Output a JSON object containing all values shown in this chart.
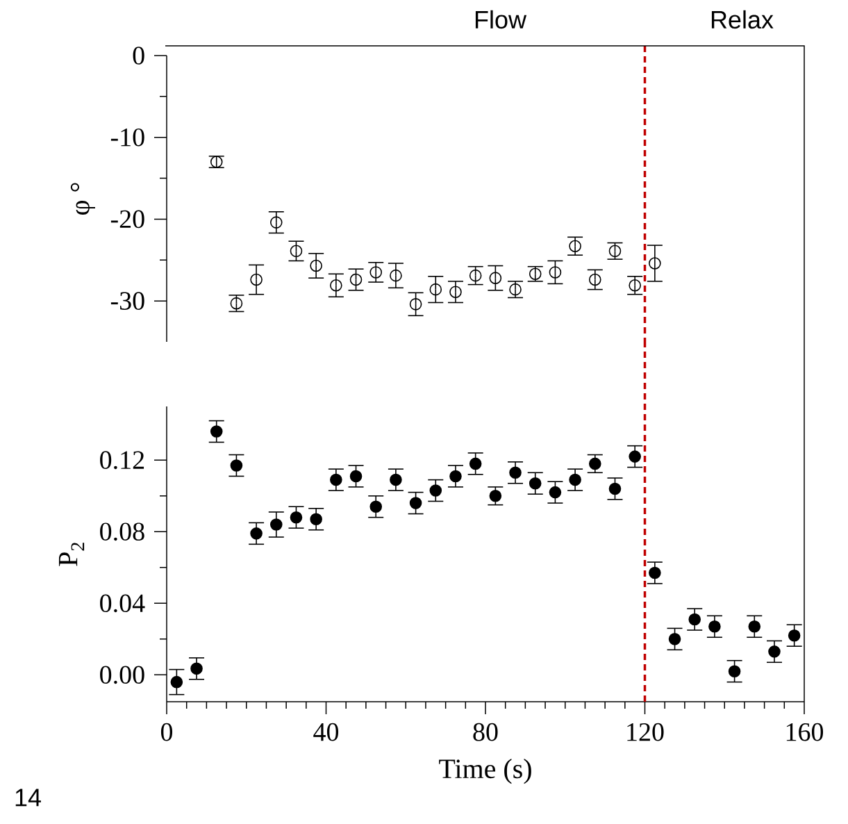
{
  "chart_data": [
    {
      "type": "scatter",
      "ylabel": "φ °",
      "xlim": [
        0,
        160
      ],
      "ylim": [
        -35,
        0
      ],
      "yticks": [
        0,
        -10,
        -20,
        -30
      ],
      "tick_labels": "y",
      "marker": "circle",
      "annotations": [
        "Flow",
        "Relax"
      ],
      "ref_lines": [
        {
          "axis": "x",
          "value": 120,
          "color": "#c00000",
          "line_style": "dashed"
        }
      ],
      "series": [
        {
          "color": "#000000",
          "x": [
            12.5,
            17.5,
            22.5,
            27.5,
            32.5,
            37.5,
            42.5,
            47.5,
            52.5,
            57.5,
            62.5,
            67.5,
            72.5,
            77.5,
            82.5,
            87.5,
            92.5,
            97.5,
            102.5,
            107.5,
            112.5,
            117.5,
            122.5
          ],
          "values": [
            -13.0,
            -30.3,
            -27.4,
            -20.4,
            -23.9,
            -25.7,
            -28.1,
            -27.4,
            -26.5,
            -26.9,
            -30.4,
            -28.6,
            -28.9,
            -26.9,
            -27.2,
            -28.6,
            -26.7,
            -26.5,
            -23.3,
            -27.4,
            -23.9,
            -28.1,
            -25.4
          ],
          "errors": [
            0.7,
            1.0,
            1.8,
            1.3,
            1.2,
            1.5,
            1.4,
            1.3,
            1.2,
            1.5,
            1.4,
            1.6,
            1.3,
            1.1,
            1.5,
            1.0,
            0.9,
            1.4,
            1.1,
            1.2,
            1.0,
            1.1,
            2.2
          ]
        }
      ]
    },
    {
      "type": "scatter",
      "xlabel": "Time (s)",
      "ylabel": "P$_{2}$",
      "xlim": [
        0,
        160
      ],
      "ylim": [
        -0.015,
        0.15
      ],
      "xticks": [
        0,
        40,
        80,
        120,
        160
      ],
      "yticks": [
        {
          "value": 0,
          "label": "0.00"
        },
        {
          "value": 0.04,
          "label": "0.04"
        },
        {
          "value": 0.08,
          "label": "0.08"
        },
        {
          "value": 0.12,
          "label": "0.12"
        }
      ],
      "marker": "circle",
      "annotations": [
        "14"
      ],
      "ref_lines": [
        {
          "axis": "x",
          "value": 120,
          "color": "#c00000",
          "line_style": "dashed"
        }
      ],
      "series": [
        {
          "color": "#000000",
          "x": [
            2.5,
            7.5,
            12.5,
            17.5,
            22.5,
            27.5,
            32.5,
            37.5,
            42.5,
            47.5,
            52.5,
            57.5,
            62.5,
            67.5,
            72.5,
            77.5,
            82.5,
            87.5,
            92.5,
            97.5,
            102.5,
            107.5,
            112.5,
            117.5,
            122.5,
            127.5,
            132.5,
            137.5,
            142.5,
            147.5,
            152.5,
            157.5
          ],
          "values": [
            -0.004,
            0.0035,
            0.136,
            0.117,
            0.079,
            0.084,
            0.088,
            0.087,
            0.109,
            0.111,
            0.094,
            0.109,
            0.096,
            0.103,
            0.111,
            0.118,
            0.1,
            0.113,
            0.107,
            0.102,
            0.109,
            0.118,
            0.104,
            0.122,
            0.057,
            0.02,
            0.031,
            0.027,
            0.002,
            0.027,
            0.013,
            0.022
          ],
          "errors": [
            0.007,
            0.006,
            0.006,
            0.006,
            0.006,
            0.007,
            0.006,
            0.006,
            0.006,
            0.006,
            0.006,
            0.006,
            0.006,
            0.006,
            0.006,
            0.006,
            0.005,
            0.006,
            0.006,
            0.006,
            0.006,
            0.005,
            0.006,
            0.006,
            0.006,
            0.006,
            0.006,
            0.006,
            0.006,
            0.006,
            0.006,
            0.006
          ]
        }
      ]
    }
  ]
}
